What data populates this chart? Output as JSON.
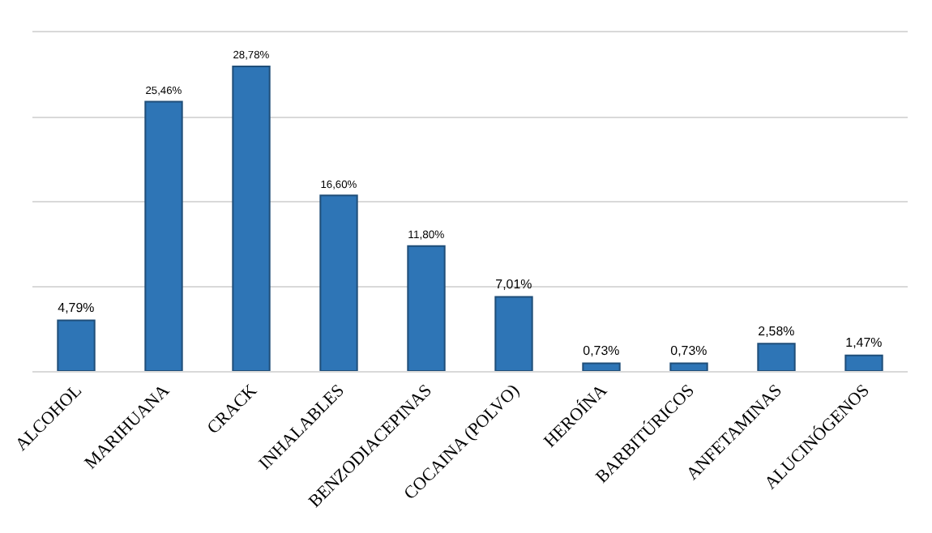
{
  "chart_data": {
    "type": "bar",
    "categories": [
      "ALCOHOL",
      "MARIHUANA",
      "CRACK",
      "INHALABLES",
      "BENZODIACEPINAS",
      "COCAINA (POLVO)",
      "HEROÍNA",
      "BARBITÚRICOS",
      "ANFETAMINAS",
      "ALUCINÓGENOS"
    ],
    "values": [
      4.79,
      25.46,
      28.78,
      16.6,
      11.8,
      7.01,
      0.73,
      0.73,
      2.58,
      1.47
    ],
    "value_labels": [
      "4,79%",
      "25,46%",
      "28,78%",
      "16,60%",
      "11,80%",
      "7,01%",
      "0,73%",
      "0,73%",
      "2,58%",
      "1,47%"
    ],
    "color": "#2e75b6",
    "ylim": [
      0,
      32
    ],
    "yticks": [
      {
        "value": 0,
        "label": null
      },
      {
        "value": 8,
        "label": null
      },
      {
        "value": 16,
        "label": null
      },
      {
        "value": 24,
        "label": null
      },
      {
        "value": 32,
        "label": null
      }
    ],
    "grid": "y",
    "tick_labels": "x"
  }
}
